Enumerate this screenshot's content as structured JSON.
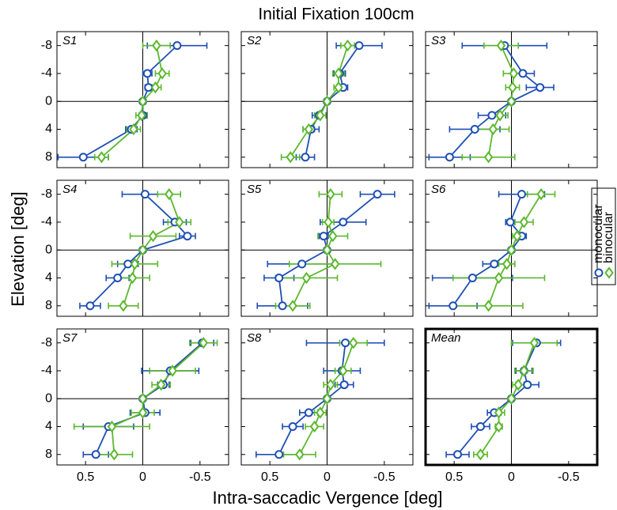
{
  "title": "Initial Fixation 100cm",
  "xlabel": "Intra-saccadic Vergence [deg]",
  "ylabel": "Elevation [deg]",
  "xlim": [
    0.75,
    -0.75
  ],
  "xticks": [
    0.5,
    0,
    -0.5
  ],
  "ylim": [
    -10,
    9.5
  ],
  "yticks": [
    -8,
    -4,
    0,
    4,
    8
  ],
  "chart_data": [
    {
      "type": "line",
      "label": "S1",
      "y": [
        -8,
        -4,
        -2,
        0,
        2,
        4,
        8
      ],
      "series": [
        {
          "name": "monocular",
          "color": "#1f4fb4",
          "values": [
            -0.3,
            -0.04,
            -0.05,
            0,
            0,
            0.1,
            0.52
          ],
          "errors": [
            0.26,
            0.04,
            0.03,
            0.01,
            0.03,
            0.05,
            0.22
          ]
        },
        {
          "name": "binocular",
          "color": "#5cb82e",
          "values": [
            -0.12,
            -0.17,
            -0.11,
            0,
            0.01,
            0.08,
            0.36
          ],
          "errors": [
            0.12,
            0.06,
            0.05,
            0.01,
            0.05,
            0.06,
            0.06
          ]
        }
      ]
    },
    {
      "type": "line",
      "label": "S2",
      "y": [
        -8,
        -4,
        -2,
        0,
        2,
        4,
        8
      ],
      "series": [
        {
          "name": "monocular",
          "color": "#1f4fb4",
          "values": [
            -0.28,
            -0.11,
            -0.14,
            0,
            0.07,
            0.14,
            0.19
          ],
          "errors": [
            0.2,
            0.05,
            0.04,
            0.01,
            0.06,
            0.07,
            0.08
          ]
        },
        {
          "name": "binocular",
          "color": "#5cb82e",
          "values": [
            -0.18,
            -0.1,
            -0.1,
            0,
            0.06,
            0.16,
            0.32
          ],
          "errors": [
            0.06,
            0.05,
            0.04,
            0.01,
            0.05,
            0.05,
            0.08
          ]
        }
      ]
    },
    {
      "type": "line",
      "label": "S3",
      "y": [
        -8,
        -4,
        -2,
        0,
        2,
        4,
        8
      ],
      "series": [
        {
          "name": "monocular",
          "color": "#1f4fb4",
          "values": [
            0.06,
            -0.1,
            -0.25,
            0,
            0.17,
            0.32,
            0.54
          ],
          "errors": [
            0.37,
            0.1,
            0.12,
            0.01,
            0.12,
            0.22,
            0.18
          ]
        },
        {
          "name": "binocular",
          "color": "#5cb82e",
          "values": [
            0.09,
            -0.02,
            -0.01,
            0,
            0.1,
            0.16,
            0.2
          ],
          "errors": [
            0.15,
            0.09,
            0.06,
            0.01,
            0.07,
            0.14,
            0.23
          ]
        }
      ]
    },
    {
      "type": "line",
      "label": "S4",
      "y": [
        -8,
        -4,
        -2,
        0,
        2,
        4,
        8
      ],
      "series": [
        {
          "name": "monocular",
          "color": "#1f4fb4",
          "values": [
            -0.02,
            -0.28,
            -0.39,
            0,
            0.13,
            0.22,
            0.46
          ],
          "errors": [
            0.2,
            0.1,
            0.07,
            0.01,
            0.09,
            0.1,
            0.09
          ]
        },
        {
          "name": "binocular",
          "color": "#5cb82e",
          "values": [
            -0.23,
            -0.32,
            -0.09,
            0,
            0.07,
            0.09,
            0.17
          ],
          "errors": [
            0.1,
            0.1,
            0.2,
            0.01,
            0.2,
            0.15,
            0.13
          ]
        }
      ]
    },
    {
      "type": "line",
      "label": "S5",
      "y": [
        -8,
        -4,
        -2,
        0,
        2,
        4,
        8
      ],
      "series": [
        {
          "name": "monocular",
          "color": "#1f4fb4",
          "values": [
            -0.44,
            -0.14,
            0.03,
            0,
            0.22,
            0.42,
            0.39
          ],
          "errors": [
            0.15,
            0.2,
            0.04,
            0.01,
            0.3,
            0.13,
            0.22
          ]
        },
        {
          "name": "binocular",
          "color": "#5cb82e",
          "values": [
            -0.03,
            -0.01,
            -0.05,
            0,
            -0.07,
            0.18,
            0.3
          ],
          "errors": [
            0.1,
            0.05,
            0.13,
            0.01,
            0.4,
            0.27,
            0.15
          ]
        }
      ]
    },
    {
      "type": "line",
      "label": "S6",
      "y": [
        -8,
        -4,
        -2,
        0,
        2,
        4,
        8
      ],
      "series": [
        {
          "name": "monocular",
          "color": "#1f4fb4",
          "values": [
            -0.09,
            0.01,
            -0.09,
            0,
            0.15,
            0.34,
            0.51
          ],
          "errors": [
            0.2,
            0.04,
            0.04,
            0.01,
            0.1,
            0.35,
            0.21
          ]
        },
        {
          "name": "binocular",
          "color": "#5cb82e",
          "values": [
            -0.26,
            -0.11,
            -0.05,
            0,
            0.04,
            0.11,
            0.2
          ],
          "errors": [
            0.12,
            0.08,
            0.04,
            0.01,
            0.07,
            0.4,
            0.3
          ]
        }
      ]
    },
    {
      "type": "line",
      "label": "S7",
      "y": [
        -8,
        -4,
        -2,
        0,
        2,
        4,
        8
      ],
      "series": [
        {
          "name": "monocular",
          "color": "#1f4fb4",
          "values": [
            -0.52,
            -0.24,
            -0.18,
            0,
            -0.02,
            0.3,
            0.41
          ],
          "errors": [
            0.1,
            0.25,
            0.05,
            0.01,
            0.13,
            0.22,
            0.11
          ]
        },
        {
          "name": "binocular",
          "color": "#5cb82e",
          "values": [
            -0.53,
            -0.26,
            -0.16,
            0,
            0,
            0.27,
            0.25
          ],
          "errors": [
            0.12,
            0.2,
            0.08,
            0.01,
            0.1,
            0.33,
            0.16
          ]
        }
      ]
    },
    {
      "type": "line",
      "label": "S8",
      "y": [
        -8,
        -4,
        -2,
        0,
        2,
        4,
        8
      ],
      "series": [
        {
          "name": "monocular",
          "color": "#1f4fb4",
          "values": [
            -0.16,
            -0.13,
            -0.15,
            0,
            0.16,
            0.3,
            0.42
          ],
          "errors": [
            0.34,
            0.16,
            0.08,
            0.01,
            0.08,
            0.09,
            0.2
          ]
        },
        {
          "name": "binocular",
          "color": "#5cb82e",
          "values": [
            -0.23,
            -0.14,
            -0.03,
            0,
            0.06,
            0.11,
            0.24
          ],
          "errors": [
            0.12,
            0.07,
            0.06,
            0.01,
            0.05,
            0.08,
            0.14
          ]
        }
      ]
    },
    {
      "type": "line",
      "label": "Mean",
      "bold_frame": true,
      "y": [
        -8,
        -4,
        -2,
        0,
        2,
        4,
        8
      ],
      "series": [
        {
          "name": "monocular",
          "color": "#1f4fb4",
          "values": [
            -0.22,
            -0.11,
            -0.14,
            0,
            0.15,
            0.27,
            0.47
          ],
          "errors": [
            0.21,
            0.07,
            0.1,
            0.01,
            0.06,
            0.08,
            0.1
          ]
        },
        {
          "name": "binocular",
          "color": "#5cb82e",
          "values": [
            -0.2,
            -0.11,
            -0.06,
            0,
            0.11,
            0.11,
            0.27
          ],
          "errors": [
            0.2,
            0.08,
            0.05,
            0.01,
            0.05,
            0.03,
            0.06
          ]
        }
      ]
    }
  ]
}
